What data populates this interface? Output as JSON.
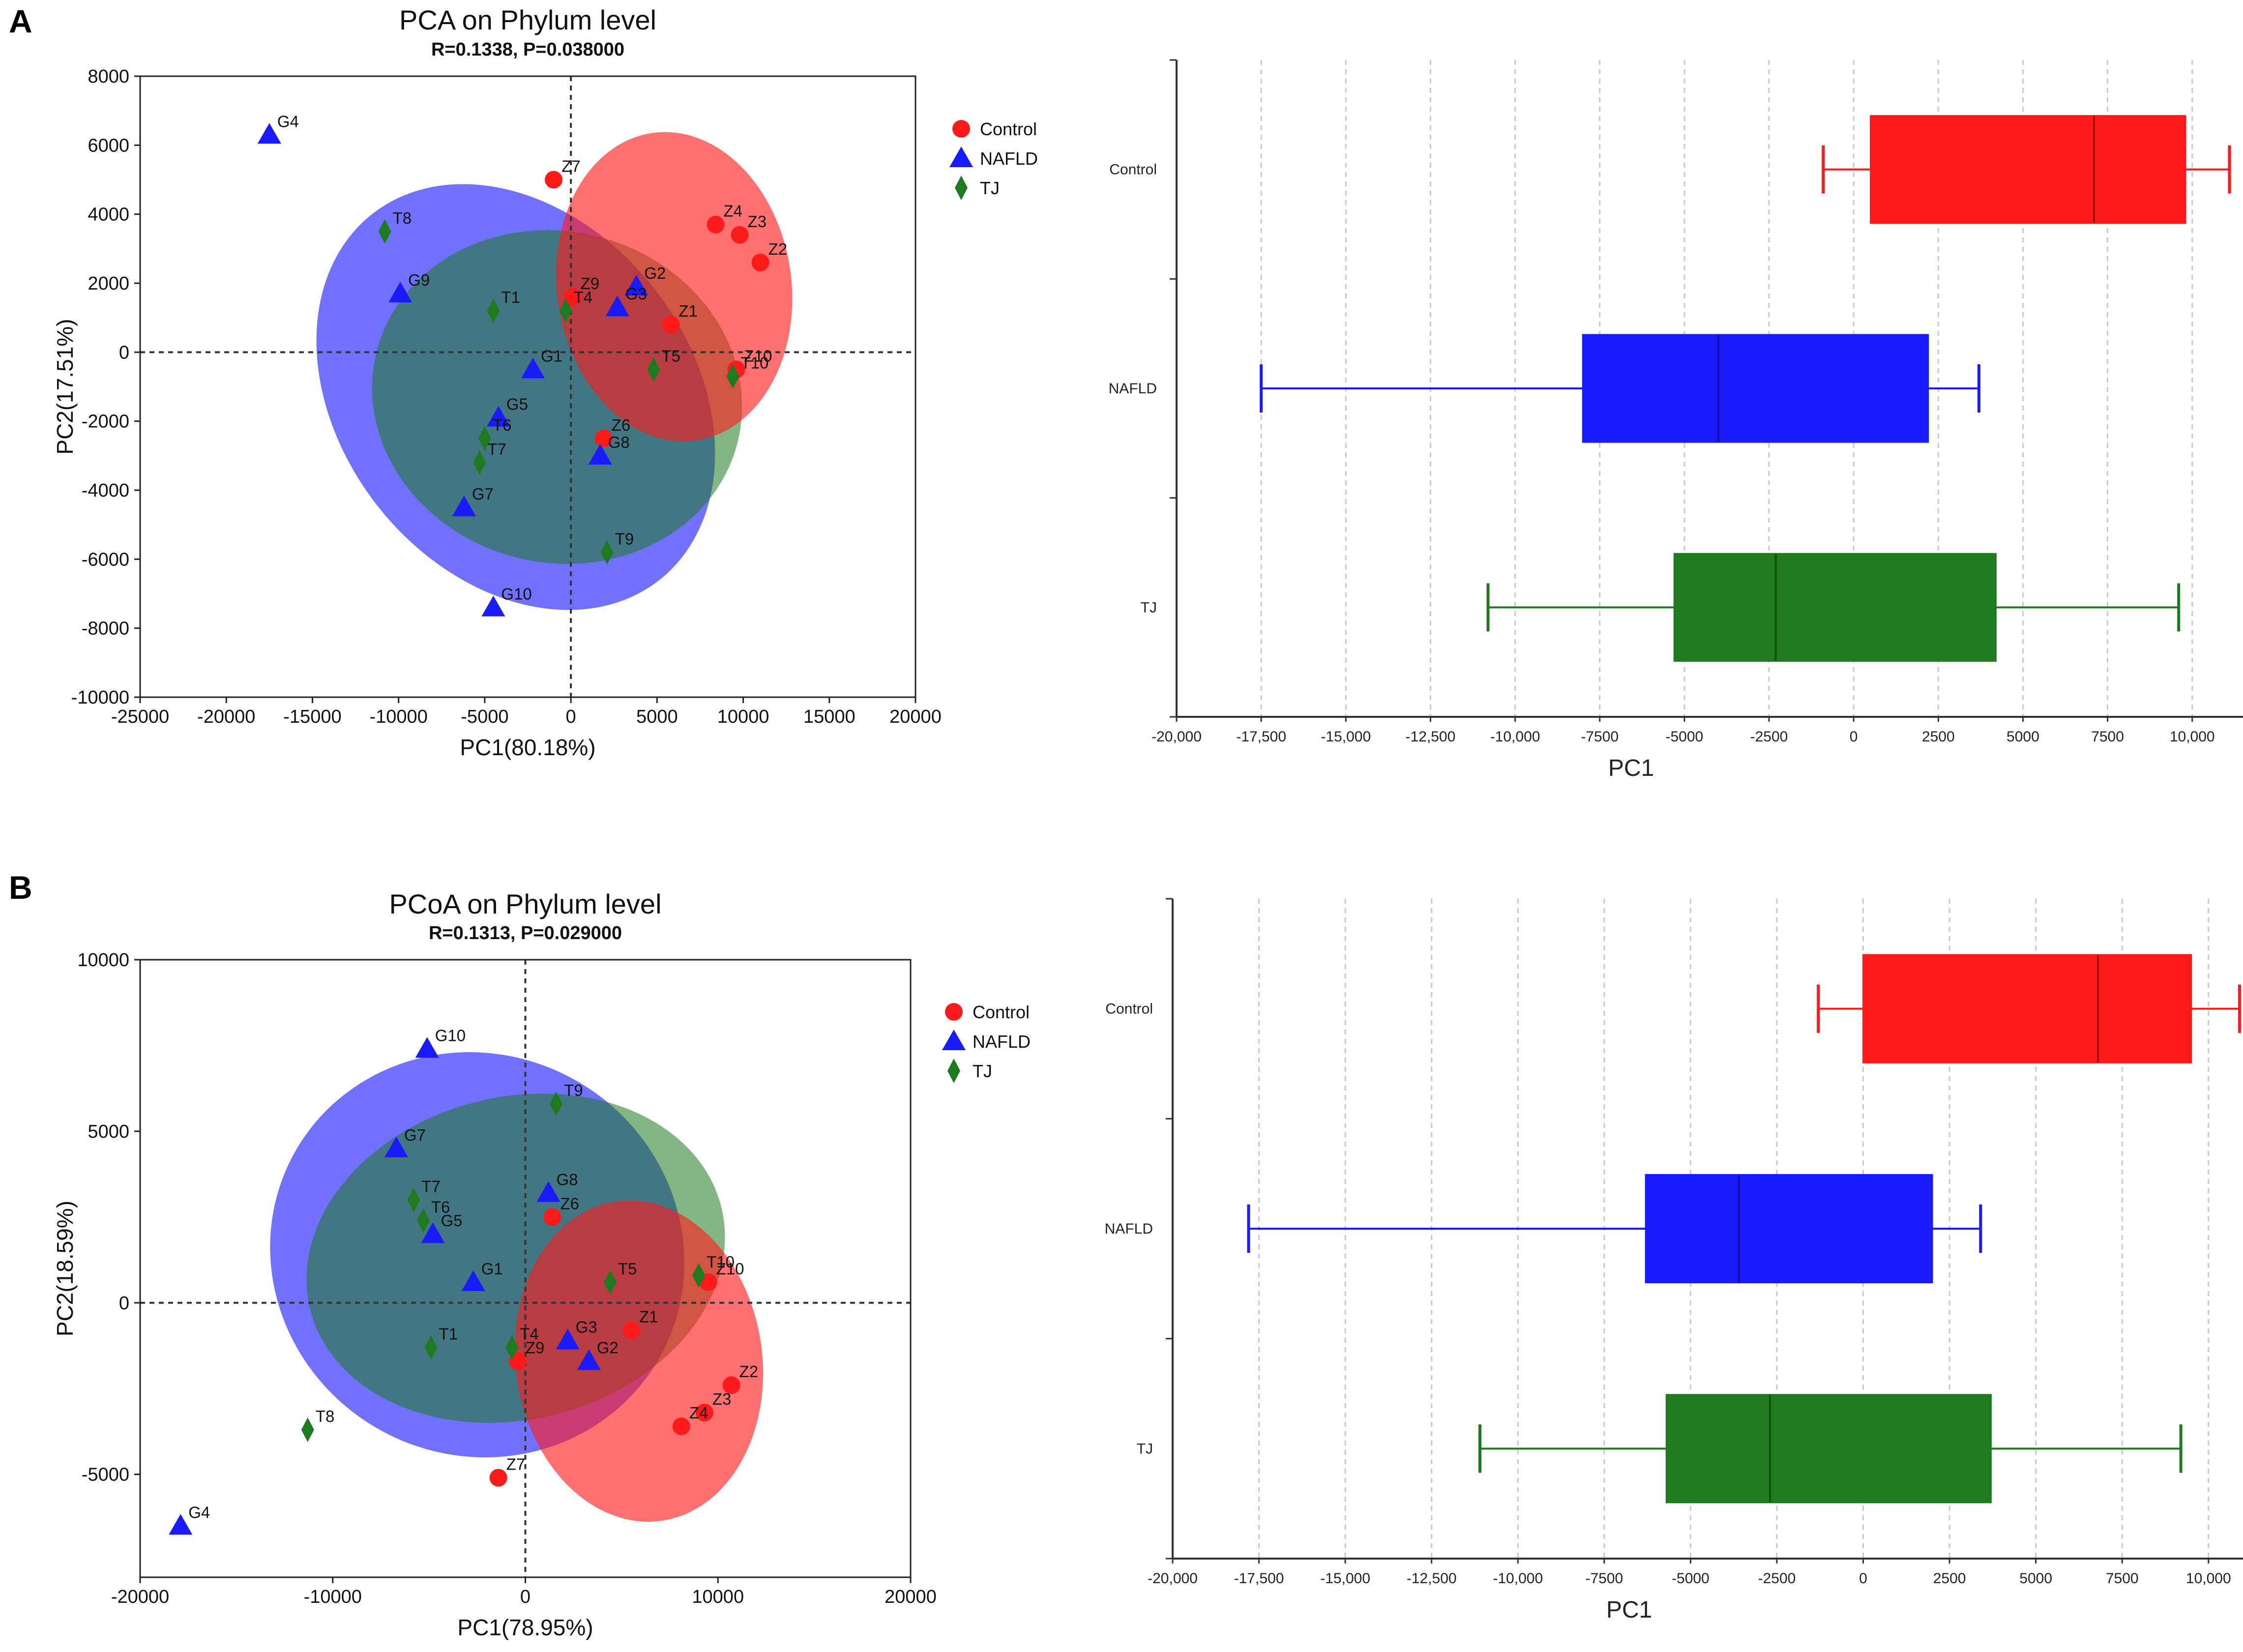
{
  "panel_labels": [
    "A",
    "B"
  ],
  "colors": {
    "Control": "#ff1a1a",
    "NAFLD": "#1a1aff",
    "TJ": "#1e7a1e"
  },
  "chart_data": [
    {
      "id": "pca",
      "type": "scatter",
      "title": "PCA on Phylum level",
      "subtitle": "R=0.1338, P=0.038000",
      "xlabel": "PC1(80.18%)",
      "ylabel": "PC2(17.51%)",
      "xlim": [
        -25000,
        20000
      ],
      "ylim": [
        -10000,
        8000
      ],
      "xticks": [
        -25000,
        -20000,
        -15000,
        -10000,
        -5000,
        0,
        5000,
        10000,
        15000,
        20000
      ],
      "yticks": [
        -10000,
        -8000,
        -6000,
        -4000,
        -2000,
        0,
        2000,
        4000,
        6000,
        8000
      ],
      "legend": [
        {
          "group": "Control",
          "label": "Control",
          "marker": "circle"
        },
        {
          "group": "NAFLD",
          "label": "NAFLD",
          "marker": "triangle"
        },
        {
          "group": "TJ",
          "label": "TJ",
          "marker": "diamond"
        }
      ],
      "ellipses": [
        {
          "group": "NAFLD",
          "cx": -3200,
          "cy": -1300,
          "rx": 13500,
          "ry": 5100,
          "angle": -52,
          "opacity": 0.62
        },
        {
          "group": "TJ",
          "cx": -800,
          "cy": -1300,
          "rx": 10800,
          "ry": 4800,
          "angle": -14,
          "opacity": 0.55
        },
        {
          "group": "Control",
          "cx": 6000,
          "cy": 1900,
          "rx": 6800,
          "ry": 4500,
          "angle": 8,
          "opacity": 0.62
        }
      ],
      "points": [
        {
          "label": "Z7",
          "group": "Control",
          "x": -1000,
          "y": 5000
        },
        {
          "label": "Z4",
          "group": "Control",
          "x": 8400,
          "y": 3700
        },
        {
          "label": "Z3",
          "group": "Control",
          "x": 9800,
          "y": 3400
        },
        {
          "label": "Z2",
          "group": "Control",
          "x": 11000,
          "y": 2600
        },
        {
          "label": "Z9",
          "group": "Control",
          "x": 100,
          "y": 1600
        },
        {
          "label": "Z1",
          "group": "Control",
          "x": 5800,
          "y": 800
        },
        {
          "label": "Z10",
          "group": "Control",
          "x": 9600,
          "y": -500
        },
        {
          "label": "Z6",
          "group": "Control",
          "x": 1900,
          "y": -2500
        },
        {
          "label": "G4",
          "group": "NAFLD",
          "x": -17500,
          "y": 6300
        },
        {
          "label": "G9",
          "group": "NAFLD",
          "x": -9900,
          "y": 1700
        },
        {
          "label": "G2",
          "group": "NAFLD",
          "x": 3800,
          "y": 1900
        },
        {
          "label": "G3",
          "group": "NAFLD",
          "x": 2700,
          "y": 1300
        },
        {
          "label": "G1",
          "group": "NAFLD",
          "x": -2200,
          "y": -500
        },
        {
          "label": "G5",
          "group": "NAFLD",
          "x": -4200,
          "y": -1900
        },
        {
          "label": "G8",
          "group": "NAFLD",
          "x": 1700,
          "y": -3000
        },
        {
          "label": "G7",
          "group": "NAFLD",
          "x": -6200,
          "y": -4500
        },
        {
          "label": "G10",
          "group": "NAFLD",
          "x": -4500,
          "y": -7400
        },
        {
          "label": "T8",
          "group": "TJ",
          "x": -10800,
          "y": 3500
        },
        {
          "label": "T1",
          "group": "TJ",
          "x": -4500,
          "y": 1200
        },
        {
          "label": "T4",
          "group": "TJ",
          "x": -300,
          "y": 1200
        },
        {
          "label": "T5",
          "group": "TJ",
          "x": 4800,
          "y": -500
        },
        {
          "label": "T10",
          "group": "TJ",
          "x": 9400,
          "y": -700
        },
        {
          "label": "T6",
          "group": "TJ",
          "x": -5000,
          "y": -2500
        },
        {
          "label": "T7",
          "group": "TJ",
          "x": -5300,
          "y": -3200
        },
        {
          "label": "T9",
          "group": "TJ",
          "x": 2100,
          "y": -5800
        }
      ]
    },
    {
      "id": "pca_box",
      "type": "box",
      "xlabel": "PC1",
      "xlim": [
        -20000,
        11500
      ],
      "xticks": [
        -20000,
        -17500,
        -15000,
        -12500,
        -10000,
        -7500,
        -5000,
        -2500,
        0,
        2500,
        5000,
        7500,
        10000
      ],
      "xticklabels": [
        "-20,000",
        "-17,500",
        "-15,000",
        "-12,500",
        "-10,000",
        "-7500",
        "-5000",
        "-2500",
        "0",
        "2500",
        "5000",
        "7500",
        "10,000"
      ],
      "groups": [
        {
          "group": "Control",
          "label": "Control",
          "min": -900,
          "q1": 500,
          "median": 7100,
          "q3": 9800,
          "max": 11100
        },
        {
          "group": "NAFLD",
          "label": "NAFLD",
          "min": -17500,
          "q1": -8000,
          "median": -4000,
          "q3": 2200,
          "max": 3700
        },
        {
          "group": "TJ",
          "label": "TJ",
          "min": -10800,
          "q1": -5300,
          "median": -2300,
          "q3": 4200,
          "max": 9600
        }
      ]
    },
    {
      "id": "pcoa",
      "type": "scatter",
      "title": "PCoA on Phylum level",
      "subtitle": "R=0.1313, P=0.029000",
      "xlabel": "PC1(78.95%)",
      "ylabel": "PC2(18.59%)",
      "xlim": [
        -20000,
        20000
      ],
      "ylim": [
        -8000,
        10000
      ],
      "xticks": [
        -20000,
        -10000,
        0,
        10000,
        20000
      ],
      "yticks": [
        -5000,
        0,
        5000,
        10000
      ],
      "legend": [
        {
          "group": "Control",
          "label": "Control",
          "marker": "circle"
        },
        {
          "group": "NAFLD",
          "label": "NAFLD",
          "marker": "triangle"
        },
        {
          "group": "TJ",
          "label": "TJ",
          "marker": "diamond"
        }
      ],
      "ellipses": [
        {
          "group": "NAFLD",
          "cx": -2500,
          "cy": 1400,
          "rx": 10400,
          "ry": 6100,
          "angle": 60,
          "opacity": 0.62
        },
        {
          "group": "TJ",
          "cx": -500,
          "cy": 1300,
          "rx": 11000,
          "ry": 4700,
          "angle": 14,
          "opacity": 0.55
        },
        {
          "group": "Control",
          "cx": 5900,
          "cy": -1700,
          "rx": 6400,
          "ry": 4700,
          "angle": 8,
          "opacity": 0.62
        }
      ],
      "points": [
        {
          "label": "Z6",
          "group": "Control",
          "x": 1400,
          "y": 2500
        },
        {
          "label": "Z10",
          "group": "Control",
          "x": 9500,
          "y": 600
        },
        {
          "label": "Z1",
          "group": "Control",
          "x": 5500,
          "y": -800
        },
        {
          "label": "Z9",
          "group": "Control",
          "x": -400,
          "y": -1700
        },
        {
          "label": "Z2",
          "group": "Control",
          "x": 10700,
          "y": -2400
        },
        {
          "label": "Z3",
          "group": "Control",
          "x": 9300,
          "y": -3200
        },
        {
          "label": "Z4",
          "group": "Control",
          "x": 8100,
          "y": -3600
        },
        {
          "label": "Z7",
          "group": "Control",
          "x": -1400,
          "y": -5100
        },
        {
          "label": "G10",
          "group": "NAFLD",
          "x": -5100,
          "y": 7400
        },
        {
          "label": "G7",
          "group": "NAFLD",
          "x": -6700,
          "y": 4500
        },
        {
          "label": "G8",
          "group": "NAFLD",
          "x": 1200,
          "y": 3200
        },
        {
          "label": "G5",
          "group": "NAFLD",
          "x": -4800,
          "y": 2000
        },
        {
          "label": "G1",
          "group": "NAFLD",
          "x": -2700,
          "y": 600
        },
        {
          "label": "G3",
          "group": "NAFLD",
          "x": 2200,
          "y": -1100
        },
        {
          "label": "G2",
          "group": "NAFLD",
          "x": 3300,
          "y": -1700
        },
        {
          "label": "G4",
          "group": "NAFLD",
          "x": -17900,
          "y": -6500
        },
        {
          "label": "T9",
          "group": "TJ",
          "x": 1600,
          "y": 5800
        },
        {
          "label": "T7",
          "group": "TJ",
          "x": -5800,
          "y": 3000
        },
        {
          "label": "T6",
          "group": "TJ",
          "x": -5300,
          "y": 2400
        },
        {
          "label": "T10",
          "group": "TJ",
          "x": 9000,
          "y": 800
        },
        {
          "label": "T5",
          "group": "TJ",
          "x": 4400,
          "y": 600
        },
        {
          "label": "T1",
          "group": "TJ",
          "x": -4900,
          "y": -1300
        },
        {
          "label": "T4",
          "group": "TJ",
          "x": -700,
          "y": -1300
        },
        {
          "label": "T8",
          "group": "TJ",
          "x": -11300,
          "y": -3700
        }
      ]
    },
    {
      "id": "pcoa_box",
      "type": "box",
      "xlabel": "PC1",
      "xlim": [
        -20000,
        11000
      ],
      "xticks": [
        -20000,
        -17500,
        -15000,
        -12500,
        -10000,
        -7500,
        -5000,
        -2500,
        0,
        2500,
        5000,
        7500,
        10000
      ],
      "xticklabels": [
        "-20,000",
        "-17,500",
        "-15,000",
        "-12,500",
        "-10,000",
        "-7500",
        "-5000",
        "-2500",
        "0",
        "2500",
        "5000",
        "7500",
        "10,000"
      ],
      "groups": [
        {
          "group": "Control",
          "label": "Control",
          "min": -1300,
          "q1": 0,
          "median": 6800,
          "q3": 9500,
          "max": 10900
        },
        {
          "group": "NAFLD",
          "label": "NAFLD",
          "min": -17800,
          "q1": -6300,
          "median": -3600,
          "q3": 2000,
          "max": 3400
        },
        {
          "group": "TJ",
          "label": "TJ",
          "min": -11100,
          "q1": -5700,
          "median": -2700,
          "q3": 3700,
          "max": 9200
        }
      ]
    }
  ]
}
